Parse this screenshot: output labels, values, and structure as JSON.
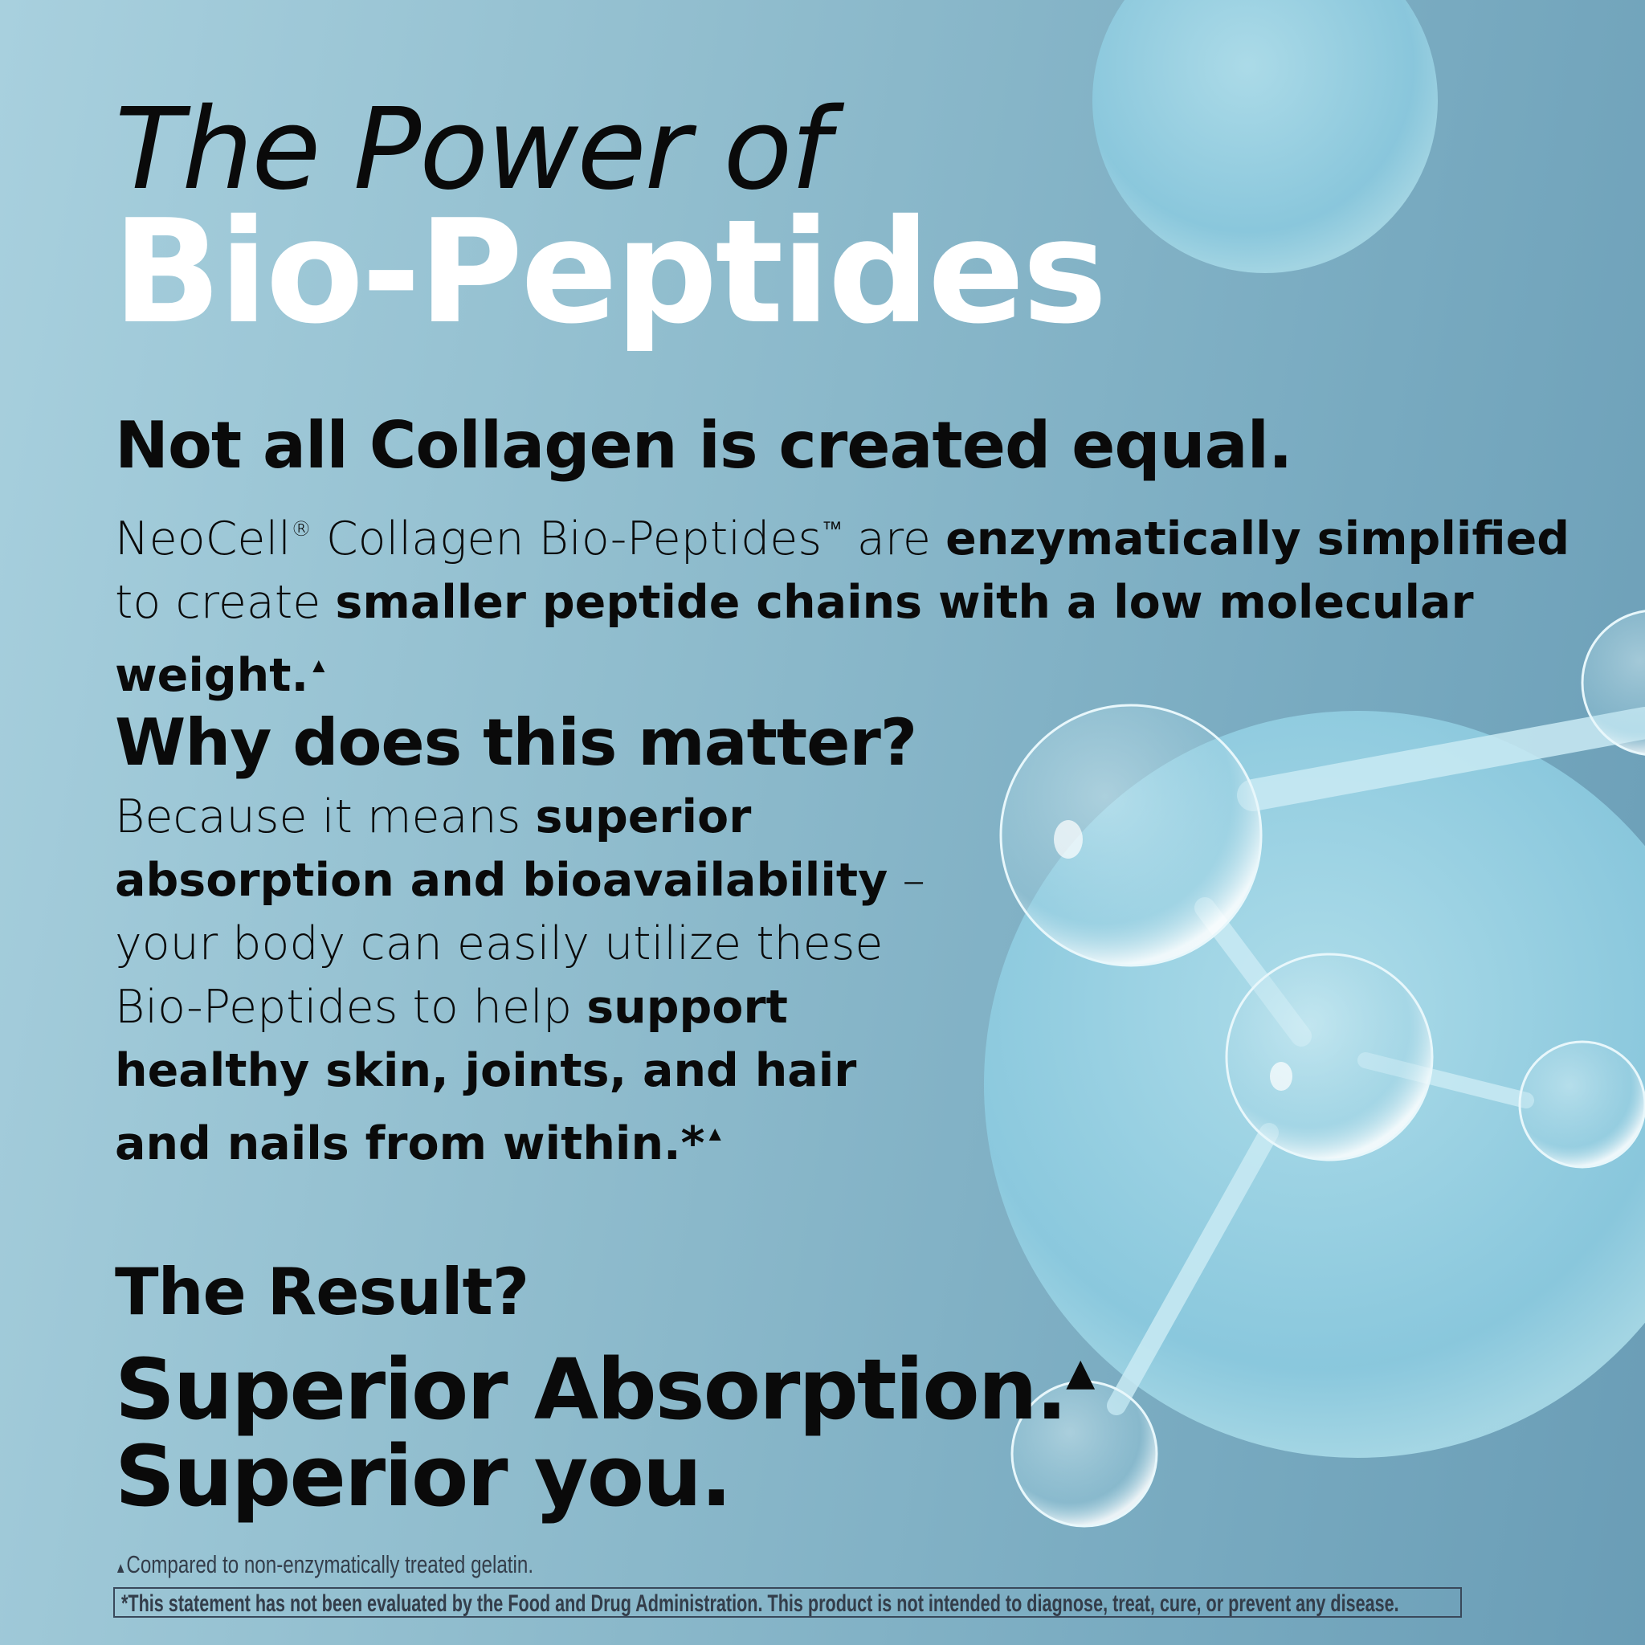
{
  "title_line1": "The Power of",
  "title_line2": "Bio-Peptides",
  "section1": {
    "heading": "Not all Collagen is created equal.",
    "p1": "NeoCell",
    "reg": "®",
    "p2": " Collagen Bio-Peptides",
    "tm": "™",
    "p3": " are ",
    "b1": "enzymatically simplified",
    "p4": "to create ",
    "b2": "smaller peptide chains with a low molecular weight.",
    "mark": "▲"
  },
  "section2": {
    "heading": "Why does this matter?",
    "p1": "Because it means ",
    "b1": "superior",
    "b2": "absorption and bioavailability",
    "p2": " –",
    "p3": "your body can easily utilize these",
    "p4": "Bio-Peptides to help ",
    "b3": "support",
    "b4": "healthy skin, joints, and hair",
    "b5": "and nails from within.*",
    "mark": "▲"
  },
  "section3": {
    "heading": "The Result?",
    "line1": "Superior Absorption.",
    "mark": "▲",
    "line2": "Superior you."
  },
  "footnote": {
    "mark": "▲",
    "text": "Compared to non-enzymatically treated gelatin."
  },
  "disclaimer": "*This statement has not been evaluated by the Food and Drug Administration. This product is not intended to diagnose, treat, cure, or prevent any disease.",
  "colors": {
    "title_accent": "#ffffff",
    "text": "#0a0a0a",
    "bubble": "#a6dbe9"
  }
}
